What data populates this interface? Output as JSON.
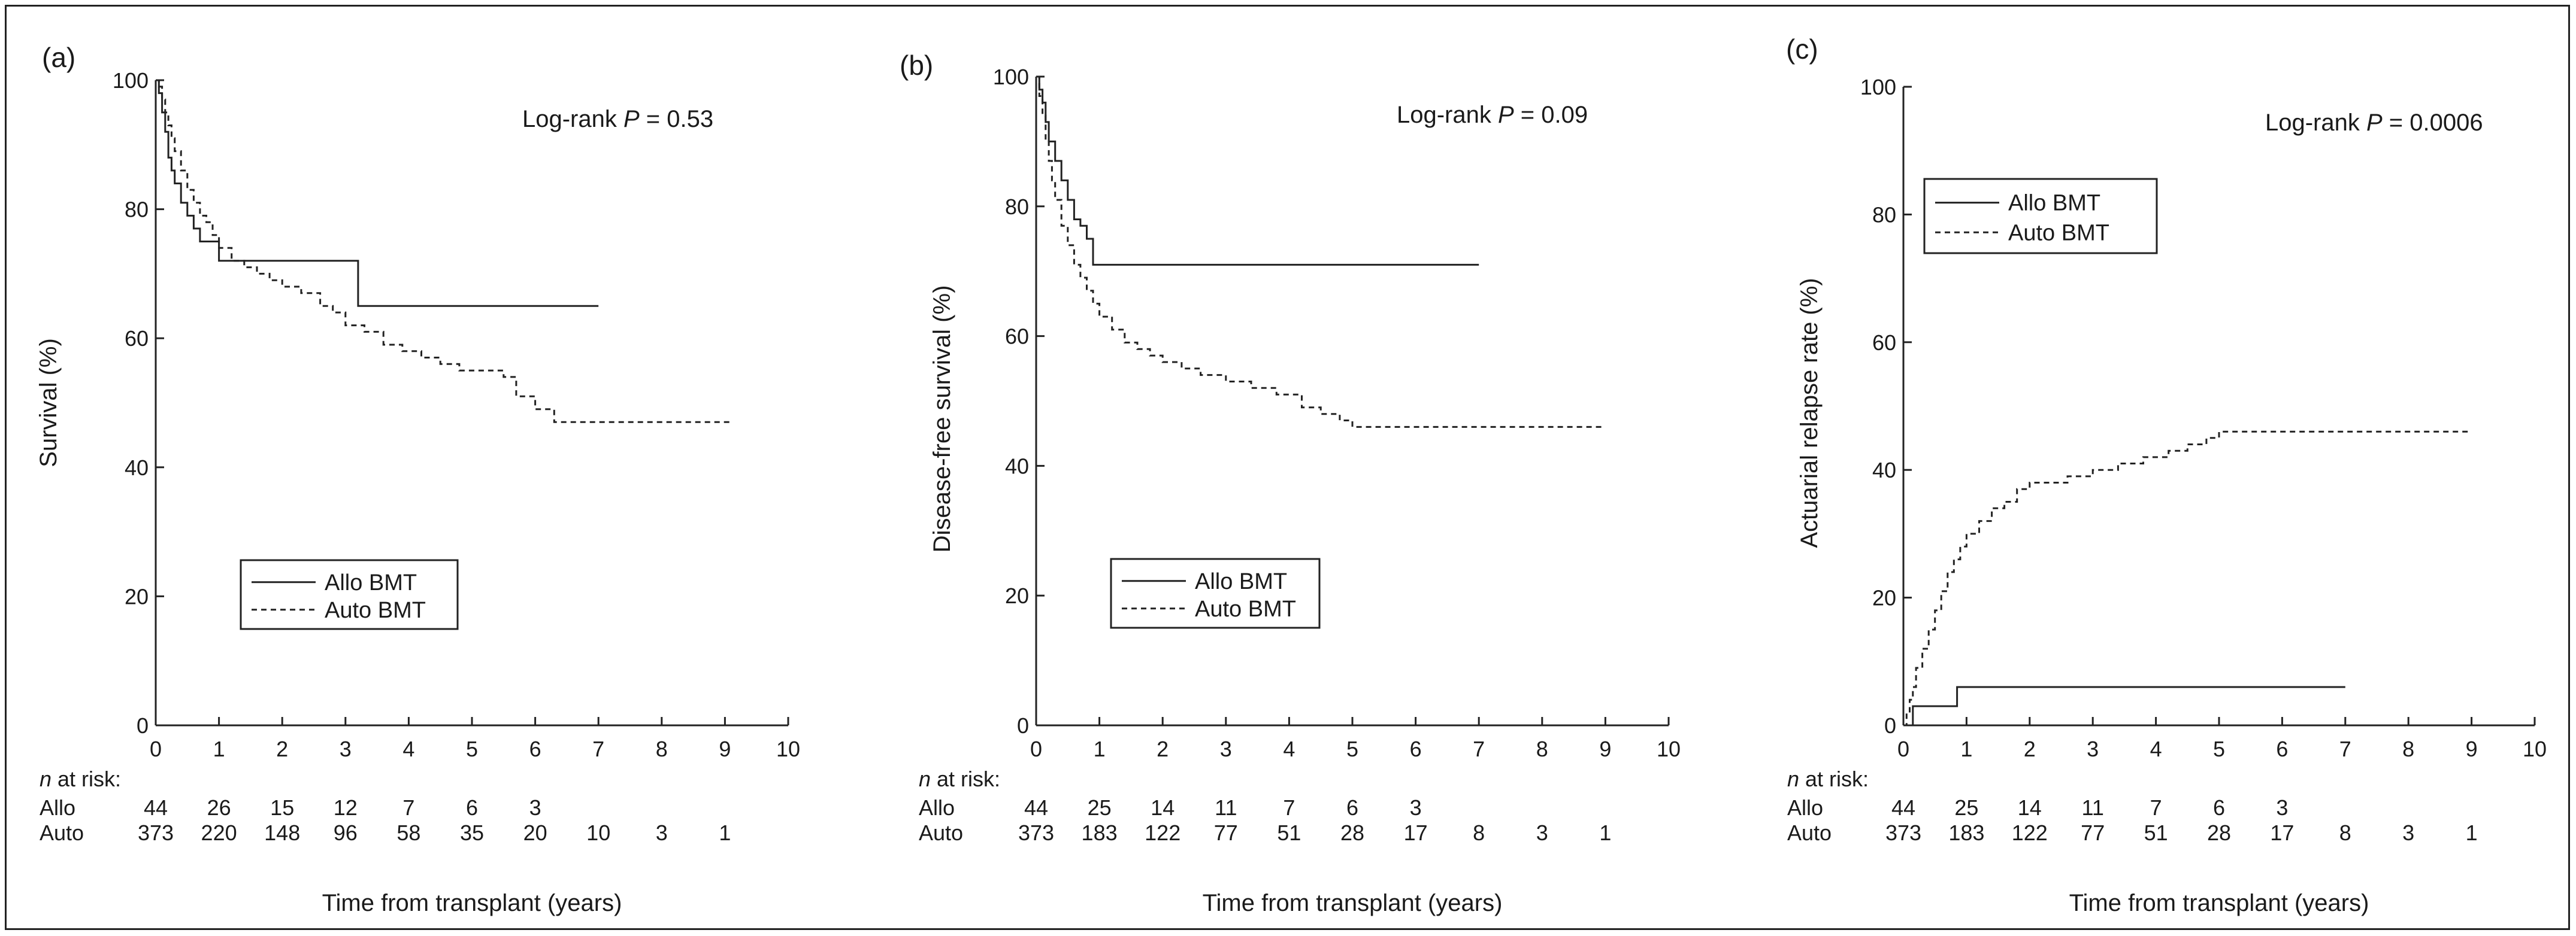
{
  "chart_data": [
    {
      "panel_label": "(a)",
      "type": "line",
      "ylabel": "Survival (%)",
      "xlabel": "Time from transplant (years)",
      "xlim": [
        0,
        10
      ],
      "ylim": [
        0,
        100
      ],
      "xticks": [
        "0",
        "1",
        "2",
        "3",
        "4",
        "5",
        "6",
        "7",
        "8",
        "9",
        "10"
      ],
      "yticks": [
        "0",
        "20",
        "40",
        "60",
        "80",
        "100"
      ],
      "annotation": {
        "prefix": "Log-rank ",
        "p": "P",
        "suffix": " = 0.53"
      },
      "legend_position": "lower-left",
      "series": [
        {
          "name": "Allo BMT",
          "style": "solid",
          "x": [
            0,
            0.05,
            0.1,
            0.15,
            0.2,
            0.25,
            0.3,
            0.4,
            0.5,
            0.6,
            0.7,
            1.0,
            3.2,
            7.0
          ],
          "y": [
            100,
            98,
            95,
            92,
            88,
            86,
            84,
            81,
            79,
            77,
            75,
            72,
            65,
            65
          ]
        },
        {
          "name": "Auto BMT",
          "style": "dashed",
          "x": [
            0,
            0.05,
            0.1,
            0.15,
            0.2,
            0.25,
            0.3,
            0.4,
            0.5,
            0.6,
            0.7,
            0.8,
            0.9,
            1.0,
            1.2,
            1.4,
            1.6,
            1.8,
            2.0,
            2.3,
            2.6,
            2.8,
            3.0,
            3.3,
            3.6,
            3.9,
            4.2,
            4.5,
            4.8,
            5.1,
            5.5,
            5.7,
            6.0,
            6.3,
            7.0,
            8.0,
            9.1
          ],
          "y": [
            100,
            99,
            97,
            95,
            93,
            91,
            89,
            86,
            83,
            81,
            79,
            78,
            76,
            74,
            72,
            71,
            70,
            69,
            68,
            67,
            65,
            64,
            62,
            61,
            59,
            58,
            57,
            56,
            55,
            55,
            54,
            51,
            49,
            47,
            47,
            47,
            47
          ]
        }
      ],
      "risk_table": {
        "title_italic": "n",
        "title_rest": " at risk:",
        "rows": [
          {
            "label": "Allo",
            "values": [
              "44",
              "26",
              "15",
              "12",
              "7",
              "6",
              "3"
            ]
          },
          {
            "label": "Auto",
            "values": [
              "373",
              "220",
              "148",
              "96",
              "58",
              "35",
              "20",
              "10",
              "3",
              "1"
            ]
          }
        ]
      }
    },
    {
      "panel_label": "(b)",
      "type": "line",
      "ylabel": "Disease-free survival (%)",
      "xlabel": "Time from transplant (years)",
      "xlim": [
        0,
        10
      ],
      "ylim": [
        0,
        100
      ],
      "xticks": [
        "0",
        "1",
        "2",
        "3",
        "4",
        "5",
        "6",
        "7",
        "8",
        "9",
        "10"
      ],
      "yticks": [
        "0",
        "20",
        "40",
        "60",
        "80",
        "100"
      ],
      "annotation": {
        "prefix": "Log-rank ",
        "p": "P",
        "suffix": " = 0.09"
      },
      "legend_position": "lower-left",
      "series": [
        {
          "name": "Allo BMT",
          "style": "solid",
          "x": [
            0,
            0.05,
            0.1,
            0.15,
            0.2,
            0.3,
            0.4,
            0.5,
            0.6,
            0.7,
            0.8,
            0.9,
            7.0
          ],
          "y": [
            100,
            98,
            96,
            93,
            90,
            87,
            84,
            81,
            78,
            77,
            75,
            71,
            71
          ]
        },
        {
          "name": "Auto BMT",
          "style": "dashed",
          "x": [
            0,
            0.05,
            0.1,
            0.15,
            0.2,
            0.25,
            0.3,
            0.4,
            0.5,
            0.6,
            0.7,
            0.8,
            0.9,
            1.0,
            1.2,
            1.4,
            1.6,
            1.8,
            2.0,
            2.3,
            2.6,
            3.0,
            3.4,
            3.8,
            4.2,
            4.5,
            4.8,
            5.0,
            6.0,
            7.0,
            8.0,
            9.0
          ],
          "y": [
            100,
            97,
            94,
            90,
            87,
            84,
            81,
            77,
            74,
            71,
            69,
            67,
            65,
            63,
            61,
            59,
            58,
            57,
            56,
            55,
            54,
            53,
            52,
            51,
            49,
            48,
            47,
            46,
            46,
            46,
            46,
            46
          ]
        }
      ],
      "risk_table": {
        "title_italic": "n",
        "title_rest": " at risk:",
        "rows": [
          {
            "label": "Allo",
            "values": [
              "44",
              "25",
              "14",
              "11",
              "7",
              "6",
              "3"
            ]
          },
          {
            "label": "Auto",
            "values": [
              "373",
              "183",
              "122",
              "77",
              "51",
              "28",
              "17",
              "8",
              "3",
              "1"
            ]
          }
        ]
      }
    },
    {
      "panel_label": "(c)",
      "type": "line",
      "ylabel": "Actuarial relapse rate (%)",
      "xlabel": "Time from transplant (years)",
      "xlim": [
        0,
        10
      ],
      "ylim": [
        0,
        100
      ],
      "xticks": [
        "0",
        "1",
        "2",
        "3",
        "4",
        "5",
        "6",
        "7",
        "8",
        "9",
        "10"
      ],
      "yticks": [
        "0",
        "20",
        "40",
        "60",
        "80",
        "100"
      ],
      "annotation": {
        "prefix": "Log-rank ",
        "p": "P",
        "suffix": " = 0.0006"
      },
      "legend_position": "top-left",
      "series": [
        {
          "name": "Allo BMT",
          "style": "solid",
          "x": [
            0,
            0.15,
            0.85,
            7.0
          ],
          "y": [
            0,
            3,
            6,
            6
          ]
        },
        {
          "name": "Auto BMT",
          "style": "dashed",
          "x": [
            0,
            0.05,
            0.1,
            0.15,
            0.2,
            0.3,
            0.4,
            0.5,
            0.6,
            0.7,
            0.8,
            0.9,
            1.0,
            1.2,
            1.4,
            1.6,
            1.8,
            2.0,
            2.3,
            2.6,
            3.0,
            3.4,
            3.8,
            4.2,
            4.5,
            4.8,
            5.0,
            6.0,
            7.0,
            8.0,
            9.0
          ],
          "y": [
            0,
            2,
            4,
            6,
            9,
            12,
            15,
            18,
            21,
            24,
            26,
            28,
            30,
            32,
            34,
            35,
            37,
            38,
            38,
            39,
            40,
            41,
            42,
            43,
            44,
            45,
            46,
            46,
            46,
            46,
            46
          ]
        }
      ],
      "risk_table": {
        "title_italic": "n",
        "title_rest": " at risk:",
        "rows": [
          {
            "label": "Allo",
            "values": [
              "44",
              "25",
              "14",
              "11",
              "7",
              "6",
              "3"
            ]
          },
          {
            "label": "Auto",
            "values": [
              "373",
              "183",
              "122",
              "77",
              "51",
              "28",
              "17",
              "8",
              "3",
              "1"
            ]
          }
        ]
      }
    }
  ]
}
